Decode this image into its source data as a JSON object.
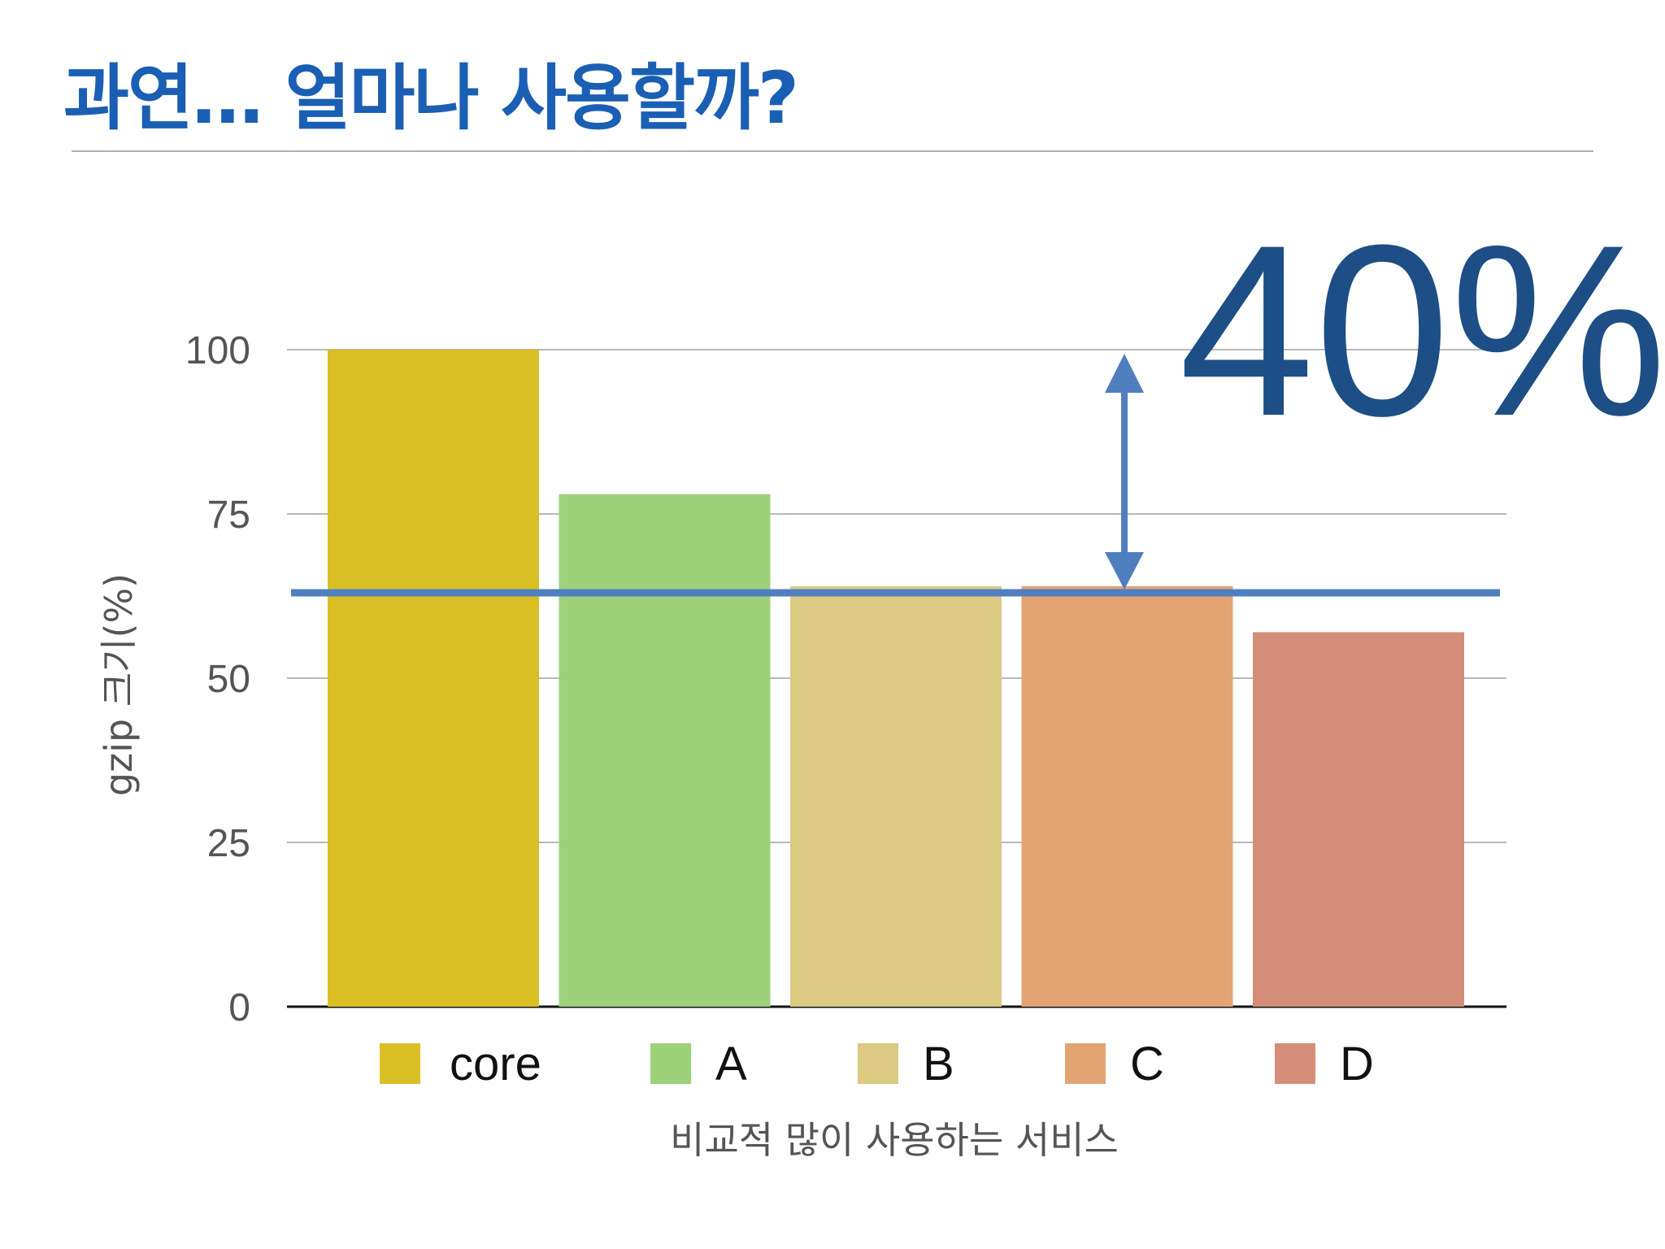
{
  "slide": {
    "title": "과연… 얼마나 사용할까?"
  },
  "colors": {
    "title": "#1a5fb4",
    "reference_line": "#4f7fbf",
    "callout": "#1d4e86"
  },
  "chart_data": {
    "type": "bar",
    "categories": [
      "core",
      "A",
      "B",
      "C",
      "D"
    ],
    "values": [
      100,
      78,
      64,
      64,
      57
    ],
    "colors": [
      "#d9bf24",
      "#9dd17a",
      "#dcc982",
      "#e2a473",
      "#d48d78"
    ],
    "ylabel": "gzip 크기(%)",
    "xlabel": "비교적 많이 사용하는 서비스",
    "ylim": [
      0,
      100
    ],
    "yticks": [
      0,
      25,
      50,
      75,
      100
    ],
    "grid": true,
    "legend": "bottom",
    "reference_line": 63,
    "annotation": "40%"
  }
}
